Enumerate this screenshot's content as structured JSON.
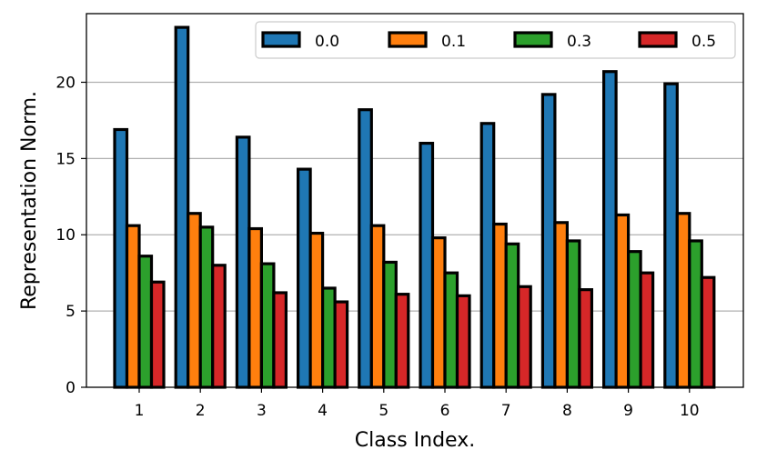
{
  "chart_data": {
    "type": "bar",
    "title": "",
    "xlabel": "Class Index.",
    "ylabel": "Representation Norm.",
    "categories": [
      "1",
      "2",
      "3",
      "4",
      "5",
      "6",
      "7",
      "8",
      "9",
      "10"
    ],
    "series": [
      {
        "name": "0.0",
        "color": "#1f77b4",
        "values": [
          16.9,
          23.6,
          16.4,
          14.3,
          18.2,
          16.0,
          17.3,
          19.2,
          20.7,
          19.9
        ]
      },
      {
        "name": "0.1",
        "color": "#ff7f0e",
        "values": [
          10.6,
          11.4,
          10.4,
          10.1,
          10.6,
          9.8,
          10.7,
          10.8,
          11.3,
          11.4
        ]
      },
      {
        "name": "0.3",
        "color": "#2ca02c",
        "values": [
          8.6,
          10.5,
          8.1,
          6.5,
          8.2,
          7.5,
          9.4,
          9.6,
          8.9,
          9.6
        ]
      },
      {
        "name": "0.5",
        "color": "#d62728",
        "values": [
          6.9,
          8.0,
          6.2,
          5.6,
          6.1,
          6.0,
          6.6,
          6.4,
          7.5,
          7.2
        ]
      }
    ],
    "ylim": [
      0,
      24.5
    ],
    "yticks": [
      "0",
      "5",
      "10",
      "15",
      "20"
    ],
    "grid": "horizontal",
    "legend_position": "top-right",
    "legend_columns": 4
  }
}
